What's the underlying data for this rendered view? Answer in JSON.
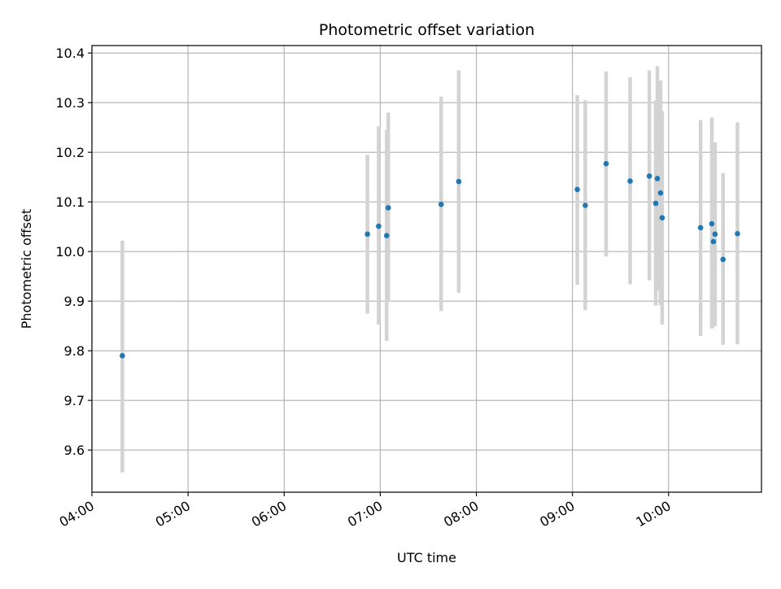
{
  "chart_data": {
    "type": "scatter",
    "title": "Photometric offset variation",
    "xlabel": "UTC time",
    "ylabel": "Photometric offset",
    "xlim": [
      "04:00",
      "10:58"
    ],
    "ylim": [
      9.515,
      10.415
    ],
    "x_ticks": [
      "04:00",
      "05:00",
      "06:00",
      "07:00",
      "08:00",
      "09:00",
      "10:00"
    ],
    "y_ticks": [
      "9.6",
      "9.7",
      "9.8",
      "9.9",
      "10.0",
      "10.1",
      "10.2",
      "10.3",
      "10.4"
    ],
    "grid": true,
    "colors": {
      "point": "#1f77b4",
      "errorbar": "#d3d3d3",
      "grid": "#b0b0b0"
    },
    "series": [
      {
        "points": [
          {
            "x": "04:19",
            "y": 9.79,
            "ylow": 9.555,
            "yhigh": 10.022
          },
          {
            "x": "06:52",
            "y": 10.035,
            "ylow": 9.875,
            "yhigh": 10.195
          },
          {
            "x": "06:59",
            "y": 10.051,
            "ylow": 9.853,
            "yhigh": 10.252
          },
          {
            "x": "07:04",
            "y": 10.032,
            "ylow": 9.82,
            "yhigh": 10.245
          },
          {
            "x": "07:05",
            "y": 10.088,
            "ylow": 9.9,
            "yhigh": 10.28
          },
          {
            "x": "07:38",
            "y": 10.095,
            "ylow": 9.88,
            "yhigh": 10.312
          },
          {
            "x": "07:49",
            "y": 10.141,
            "ylow": 9.917,
            "yhigh": 10.365
          },
          {
            "x": "09:03",
            "y": 10.125,
            "ylow": 9.933,
            "yhigh": 10.315
          },
          {
            "x": "09:08",
            "y": 10.093,
            "ylow": 9.882,
            "yhigh": 10.305
          },
          {
            "x": "09:21",
            "y": 10.177,
            "ylow": 9.99,
            "yhigh": 10.363
          },
          {
            "x": "09:36",
            "y": 10.142,
            "ylow": 9.934,
            "yhigh": 10.351
          },
          {
            "x": "09:48",
            "y": 10.152,
            "ylow": 9.942,
            "yhigh": 10.365
          },
          {
            "x": "09:52",
            "y": 10.097,
            "ylow": 9.891,
            "yhigh": 10.305
          },
          {
            "x": "09:53",
            "y": 10.147,
            "ylow": 9.921,
            "yhigh": 10.373
          },
          {
            "x": "09:55",
            "y": 10.118,
            "ylow": 9.892,
            "yhigh": 10.345
          },
          {
            "x": "09:56",
            "y": 10.068,
            "ylow": 9.853,
            "yhigh": 10.283
          },
          {
            "x": "10:20",
            "y": 10.048,
            "ylow": 9.83,
            "yhigh": 10.265
          },
          {
            "x": "10:27",
            "y": 10.056,
            "ylow": 9.845,
            "yhigh": 10.27
          },
          {
            "x": "10:28",
            "y": 10.02,
            "ylow": 9.848,
            "yhigh": 10.183
          },
          {
            "x": "10:29",
            "y": 10.035,
            "ylow": 9.85,
            "yhigh": 10.22
          },
          {
            "x": "10:34",
            "y": 9.984,
            "ylow": 9.812,
            "yhigh": 10.158
          },
          {
            "x": "10:43",
            "y": 10.036,
            "ylow": 9.813,
            "yhigh": 10.26
          }
        ]
      }
    ]
  }
}
